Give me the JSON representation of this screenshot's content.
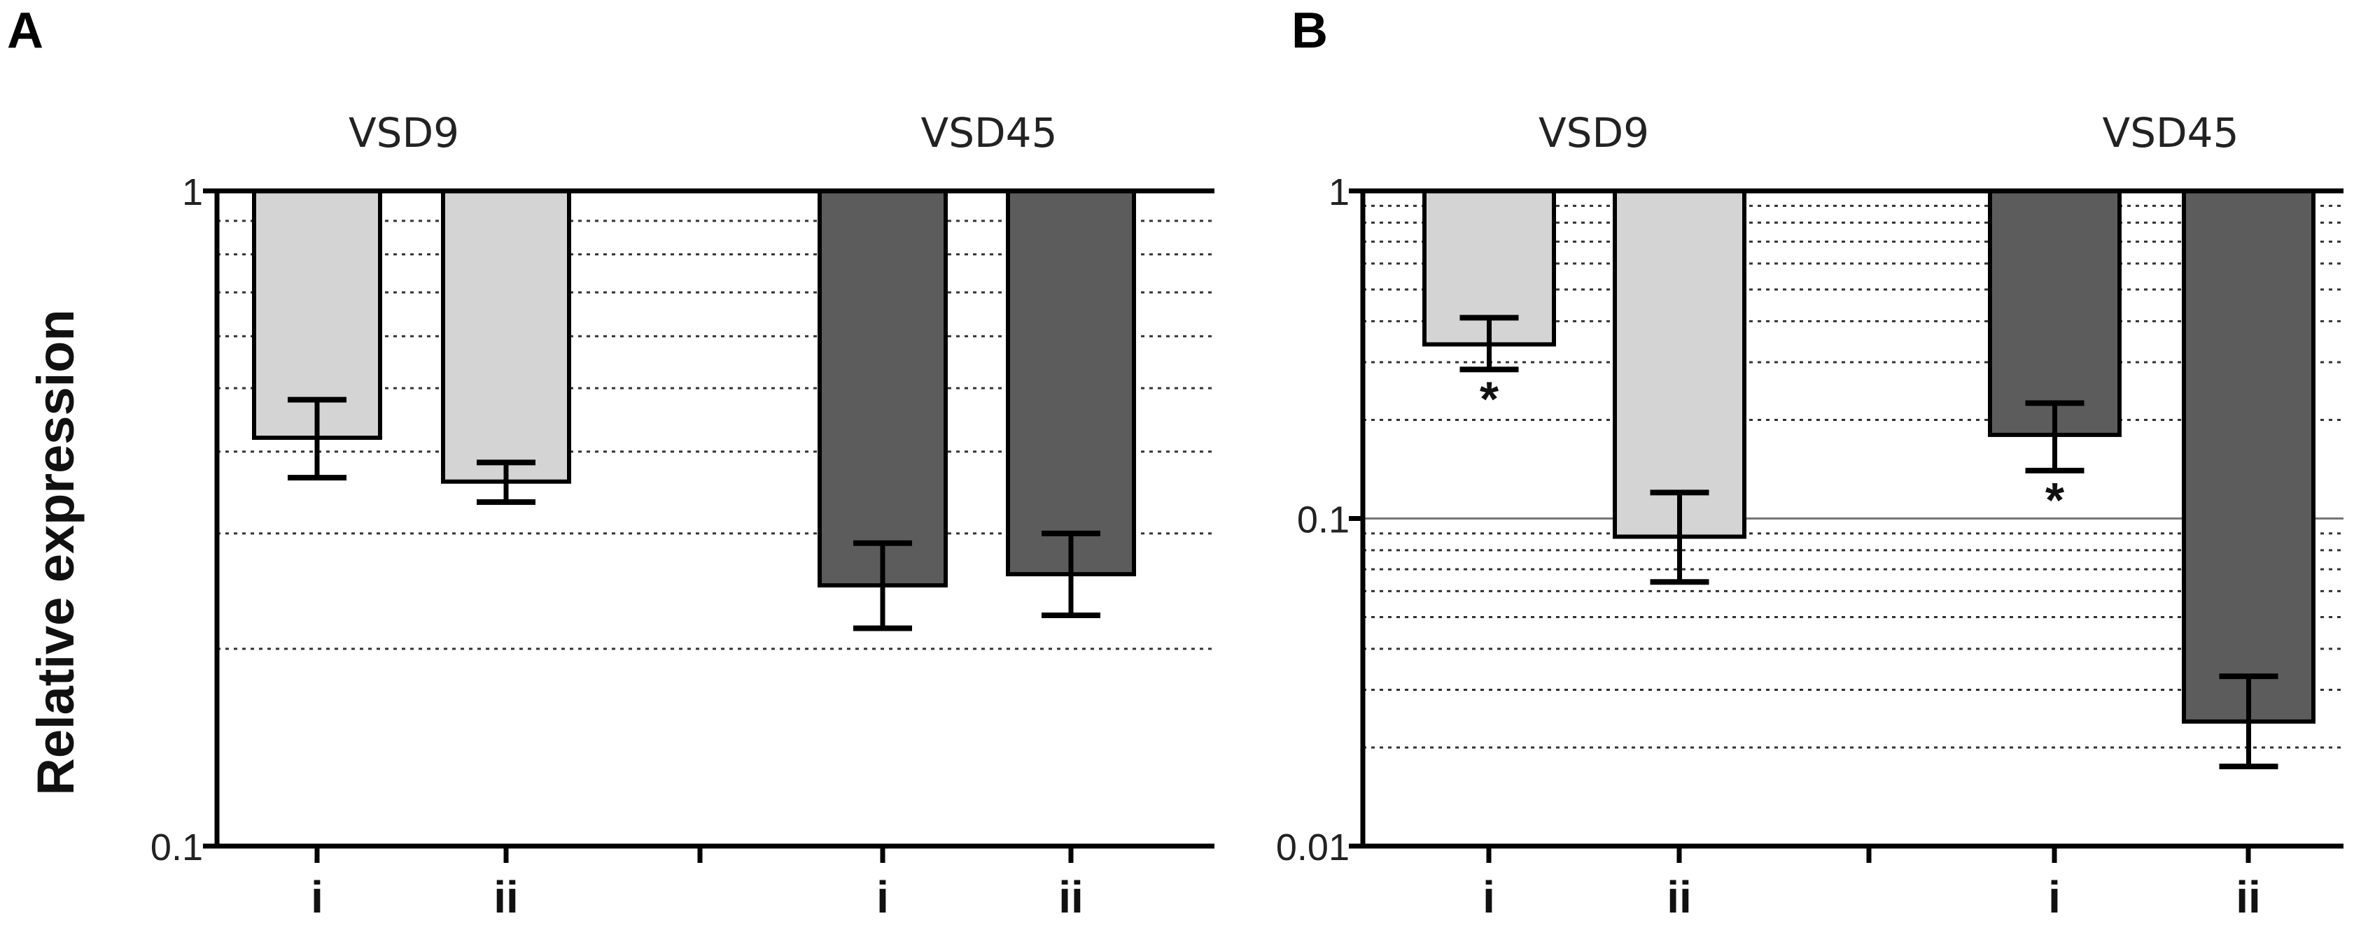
{
  "ylabel": "Relative expression",
  "chart_data": [
    {
      "panel": "A",
      "type": "bar",
      "yscale": "log",
      "ylim": [
        0.1,
        1
      ],
      "yticks": [
        "1",
        "0.1"
      ],
      "groups": [
        "VSD9",
        "VSD45"
      ],
      "categories": [
        "i",
        "ii",
        "i",
        "ii"
      ],
      "bar_groups": [
        "VSD9",
        "VSD9",
        "VSD45",
        "VSD45"
      ],
      "values": [
        0.42,
        0.36,
        0.25,
        0.26
      ],
      "err_high": [
        0.48,
        0.385,
        0.29,
        0.3
      ],
      "err_low": [
        0.365,
        0.335,
        0.215,
        0.225
      ],
      "significant": [
        false,
        false,
        false,
        false
      ],
      "colors": {
        "VSD9": "#d4d4d4",
        "VSD45": "#5c5c5c"
      }
    },
    {
      "panel": "B",
      "type": "bar",
      "yscale": "log",
      "ylim": [
        0.01,
        1
      ],
      "yticks": [
        "1",
        "0.1",
        "0.01"
      ],
      "groups": [
        "VSD9",
        "VSD45"
      ],
      "categories": [
        "i",
        "ii",
        "i",
        "ii"
      ],
      "bar_groups": [
        "VSD9",
        "VSD9",
        "VSD45",
        "VSD45"
      ],
      "values": [
        0.34,
        0.088,
        0.18,
        0.024
      ],
      "err_high": [
        0.41,
        0.12,
        0.225,
        0.033
      ],
      "err_low": [
        0.285,
        0.064,
        0.14,
        0.0175
      ],
      "significant": [
        true,
        false,
        true,
        false
      ],
      "significance_marker": "*",
      "colors": {
        "VSD9": "#d4d4d4",
        "VSD45": "#5c5c5c"
      }
    }
  ]
}
